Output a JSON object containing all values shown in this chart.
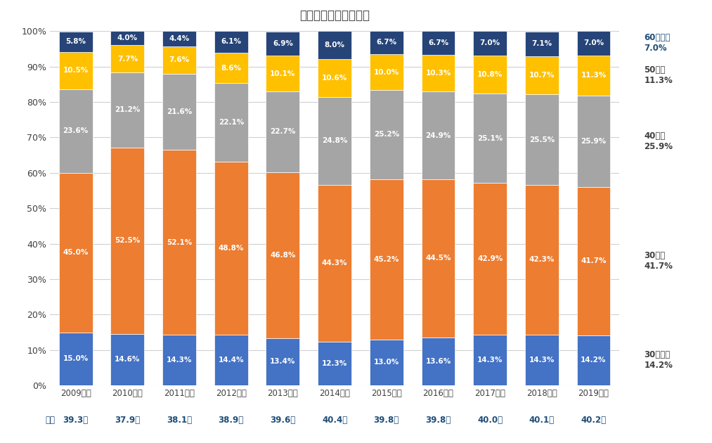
{
  "title": "年齢（全体・構成比）",
  "years": [
    "2009年度",
    "2010年度",
    "2011年度",
    "2012年度",
    "2013年度",
    "2014年度",
    "2015年度",
    "2016年度",
    "2017年度",
    "2018年度",
    "2019年度"
  ],
  "averages": [
    "39.3歳",
    "37.9歳",
    "38.1歳",
    "38.9歳",
    "39.6歳",
    "40.4歳",
    "39.8歳",
    "39.8歳",
    "40.0歳",
    "40.1歳",
    "40.2歳"
  ],
  "categories": [
    "30歳未満",
    "30歳代",
    "40歳代",
    "50歳代",
    "60歳以上"
  ],
  "colors": [
    "#4472c4",
    "#ed7d31",
    "#a5a5a5",
    "#ffc000",
    "#264478"
  ],
  "data": {
    "30歳未満": [
      15.0,
      14.6,
      14.3,
      14.4,
      13.4,
      12.3,
      13.0,
      13.6,
      14.3,
      14.3,
      14.2
    ],
    "30歳代": [
      45.0,
      52.5,
      52.1,
      48.8,
      46.8,
      44.3,
      45.2,
      44.5,
      42.9,
      42.3,
      41.7
    ],
    "40歳代": [
      23.6,
      21.2,
      21.6,
      22.1,
      22.7,
      24.8,
      25.2,
      24.9,
      25.1,
      25.5,
      25.9
    ],
    "50歳代": [
      10.5,
      7.7,
      7.6,
      8.6,
      10.1,
      10.6,
      10.0,
      10.3,
      10.8,
      10.7,
      11.3
    ],
    "60歳以上": [
      5.8,
      4.0,
      4.4,
      6.1,
      6.9,
      8.0,
      6.7,
      6.7,
      7.0,
      7.1,
      7.0
    ]
  },
  "legend_labels": [
    "30歳未満",
    "30歳代",
    "40歳代",
    "50歳代",
    "60歳以上"
  ],
  "legend_values_2019": [
    "14.2%",
    "41.7%",
    "25.9%",
    "11.3%",
    "7.0%"
  ],
  "ylim": [
    0,
    100
  ],
  "ytick_labels": [
    "0%",
    "10%",
    "20%",
    "30%",
    "40%",
    "50%",
    "60%",
    "70%",
    "80%",
    "90%",
    "100%"
  ],
  "background_color": "#ffffff",
  "grid_color": "#d0d0d0",
  "text_color_dark": "#404040",
  "bar_width": 0.65
}
